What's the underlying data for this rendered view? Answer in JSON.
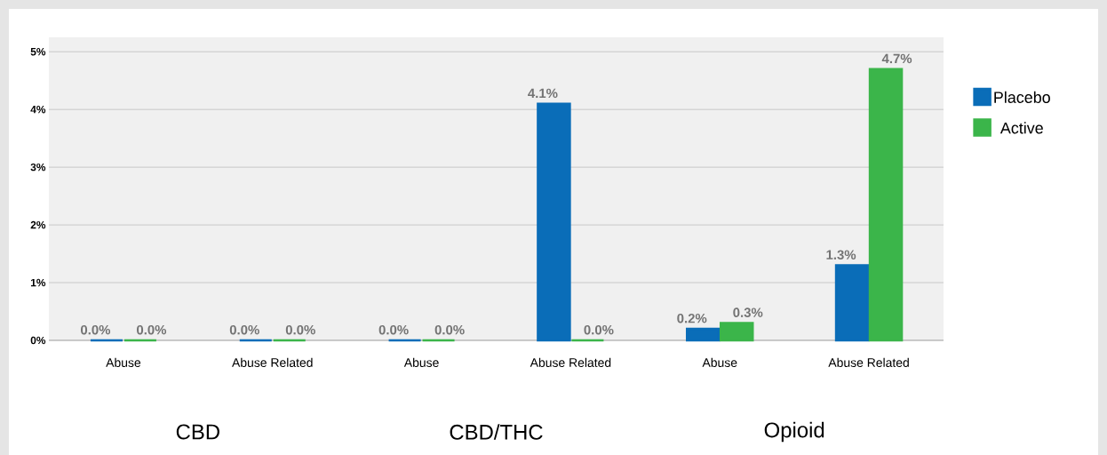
{
  "chart_data": {
    "type": "bar",
    "categories": [
      "Abuse",
      "Abuse Related",
      "Abuse",
      "Abuse Related",
      "Abuse",
      "Abuse Related"
    ],
    "series": [
      {
        "name": "Placebo",
        "color": "#0a6db8",
        "values": [
          0,
          0,
          0,
          4.1,
          0.2,
          1.3
        ],
        "value_labels": [
          "0.0%",
          "0.0%",
          "0.0%",
          "4.1%",
          "0.2%",
          "1.3%"
        ]
      },
      {
        "name": "Active",
        "color": "#3bb54a",
        "values": [
          0,
          0,
          0,
          0,
          0.3,
          4.7
        ],
        "value_labels": [
          "0.0%",
          "0.0%",
          "0.0%",
          "0.0%",
          "0.3%",
          "4.7%"
        ]
      }
    ],
    "ylim": [
      0,
      5.25
    ],
    "yticks": [
      {
        "value": 0,
        "label": "0%"
      },
      {
        "value": 1,
        "label": "1%"
      },
      {
        "value": 2,
        "label": "2%"
      },
      {
        "value": 3,
        "label": "3%"
      },
      {
        "value": 4,
        "label": "4%"
      },
      {
        "value": 5,
        "label": "5%"
      }
    ],
    "grid": "y",
    "legend": "right",
    "annotations": [
      "CBD",
      "CBD/THC",
      "Opioid"
    ]
  }
}
